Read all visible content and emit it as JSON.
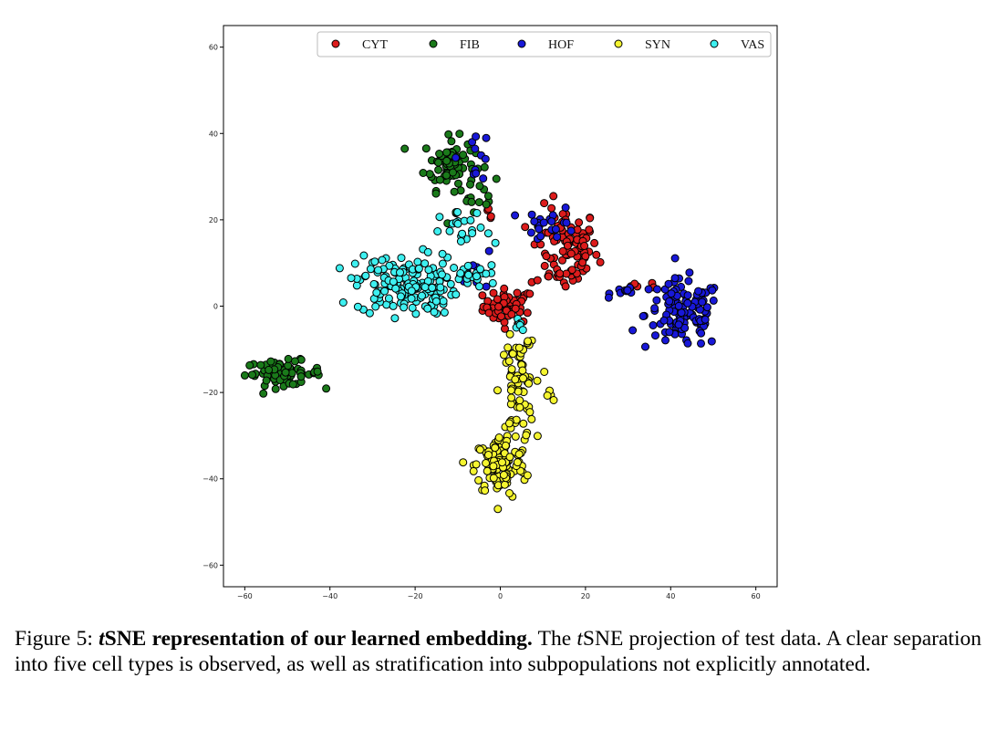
{
  "chart_data": {
    "type": "scatter",
    "title": "",
    "xlabel": "",
    "ylabel": "",
    "xlim": [
      -65,
      65
    ],
    "ylim": [
      -65,
      65
    ],
    "xticks": [
      -60,
      -40,
      -20,
      0,
      20,
      40,
      60
    ],
    "yticks": [
      -60,
      -40,
      -20,
      0,
      20,
      40,
      60
    ],
    "grid": false,
    "legend_position": "top",
    "series": [
      {
        "name": "CYT",
        "color": "#dd1c1c",
        "clusters": [
          {
            "center": [
              2,
              0
            ],
            "sd": [
              3,
              2
            ],
            "n": 55
          },
          {
            "center": [
              15,
              13
            ],
            "sd": [
              4,
              5
            ],
            "n": 95
          },
          {
            "center": [
              -2,
              21
            ],
            "sd": [
              1,
              1.5
            ],
            "n": 4
          },
          {
            "center": [
              -14,
              7
            ],
            "sd": [
              1.5,
              1
            ],
            "n": 3
          },
          {
            "center": [
              35,
              5
            ],
            "sd": [
              2,
              0.5
            ],
            "n": 5
          }
        ]
      },
      {
        "name": "FIB",
        "color": "#1a7a1a",
        "clusters": [
          {
            "center": [
              -12,
              33
            ],
            "sd": [
              3,
              3
            ],
            "n": 75
          },
          {
            "center": [
              -5,
              26
            ],
            "sd": [
              2,
              2
            ],
            "n": 12
          },
          {
            "center": [
              -51,
              -15.5
            ],
            "sd": [
              4.5,
              1.4
            ],
            "n": 70
          },
          {
            "center": [
              -11,
              21
            ],
            "sd": [
              1,
              1
            ],
            "n": 3
          }
        ]
      },
      {
        "name": "HOF",
        "color": "#1818d8",
        "clusters": [
          {
            "center": [
              43,
              -2
            ],
            "sd": [
              4.5,
              4
            ],
            "n": 120
          },
          {
            "center": [
              30,
              3.5
            ],
            "sd": [
              2,
              0.6
            ],
            "n": 10
          },
          {
            "center": [
              12,
              19
            ],
            "sd": [
              3,
              2
            ],
            "n": 22
          },
          {
            "center": [
              -6,
              35
            ],
            "sd": [
              2,
              3
            ],
            "n": 12
          },
          {
            "center": [
              -5,
              8
            ],
            "sd": [
              4,
              2
            ],
            "n": 10
          }
        ]
      },
      {
        "name": "SYN",
        "color": "#f5f530",
        "clusters": [
          {
            "center": [
              4,
              -20
            ],
            "sd": [
              2,
              6
            ],
            "n": 75
          },
          {
            "center": [
              0,
              -37
            ],
            "sd": [
              3,
              3.5
            ],
            "n": 115
          },
          {
            "center": [
              11,
              -21
            ],
            "sd": [
              1,
              0.8
            ],
            "n": 4
          },
          {
            "center": [
              5,
              -9
            ],
            "sd": [
              1.5,
              1
            ],
            "n": 8
          }
        ]
      },
      {
        "name": "VAS",
        "color": "#3ef0f0",
        "clusters": [
          {
            "center": [
              -22,
              5
            ],
            "sd": [
              6,
              3.5
            ],
            "n": 170
          },
          {
            "center": [
              -8,
              17
            ],
            "sd": [
              3,
              2.5
            ],
            "n": 20
          },
          {
            "center": [
              -5,
              7
            ],
            "sd": [
              3,
              1.5
            ],
            "n": 15
          },
          {
            "center": [
              5,
              -4
            ],
            "sd": [
              1.5,
              1.5
            ],
            "n": 6
          }
        ]
      }
    ]
  },
  "caption": {
    "label": "Figure 5: ",
    "bold_title_suffix": "SNE representation of our learned embedding.",
    "italic_t": "t",
    "text_before_t": " The ",
    "text_after_t": "SNE projection of test data. A clear separation into five cell types is observed, as well as stratification into subpopulations not explicitly annotated."
  }
}
